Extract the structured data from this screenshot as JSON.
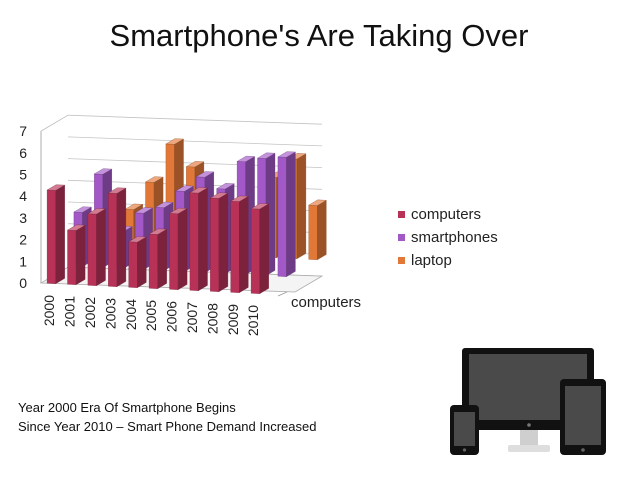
{
  "slide": {
    "title": "Smartphone's Are Taking Over",
    "caption_line1": "Year 2000  Era Of Smartphone Begins",
    "caption_line2": "Since Year 2010 – Smart Phone Demand Increased"
  },
  "chart_data": {
    "type": "bar",
    "style": "3d-clustered-column",
    "title": "",
    "categories": [
      "2000",
      "2001",
      "2002",
      "2003",
      "2004",
      "2005",
      "2006",
      "2007",
      "2008",
      "2009",
      "2010"
    ],
    "series": [
      {
        "name": "computers",
        "color": "#b83258",
        "values": [
          4.3,
          2.5,
          3.3,
          4.3,
          2.1,
          2.5,
          3.5,
          4.5,
          4.3,
          4.2,
          3.9
        ]
      },
      {
        "name": "smartphones",
        "color": "#a258c6",
        "values": [
          2.5,
          4.3,
          1.7,
          2.6,
          2.9,
          3.7,
          4.4,
          3.9,
          5.2,
          5.4,
          5.5
        ]
      },
      {
        "name": "laptop",
        "color": "#e27838",
        "values": [
          2.2,
          1.9,
          3.2,
          5.0,
          4.0,
          1.9,
          0.9,
          1.7,
          3.7,
          4.6,
          2.5
        ]
      }
    ],
    "depth_axis_label": "computers",
    "y_ticks": [
      "0",
      "1",
      "2",
      "3",
      "4",
      "5",
      "6",
      "7"
    ],
    "ylim": [
      0,
      7
    ],
    "legend": [
      "computers",
      "smartphones",
      "laptop"
    ],
    "legend_position": "right",
    "grid": true
  },
  "icons": {
    "devices": "devices-illustration"
  }
}
